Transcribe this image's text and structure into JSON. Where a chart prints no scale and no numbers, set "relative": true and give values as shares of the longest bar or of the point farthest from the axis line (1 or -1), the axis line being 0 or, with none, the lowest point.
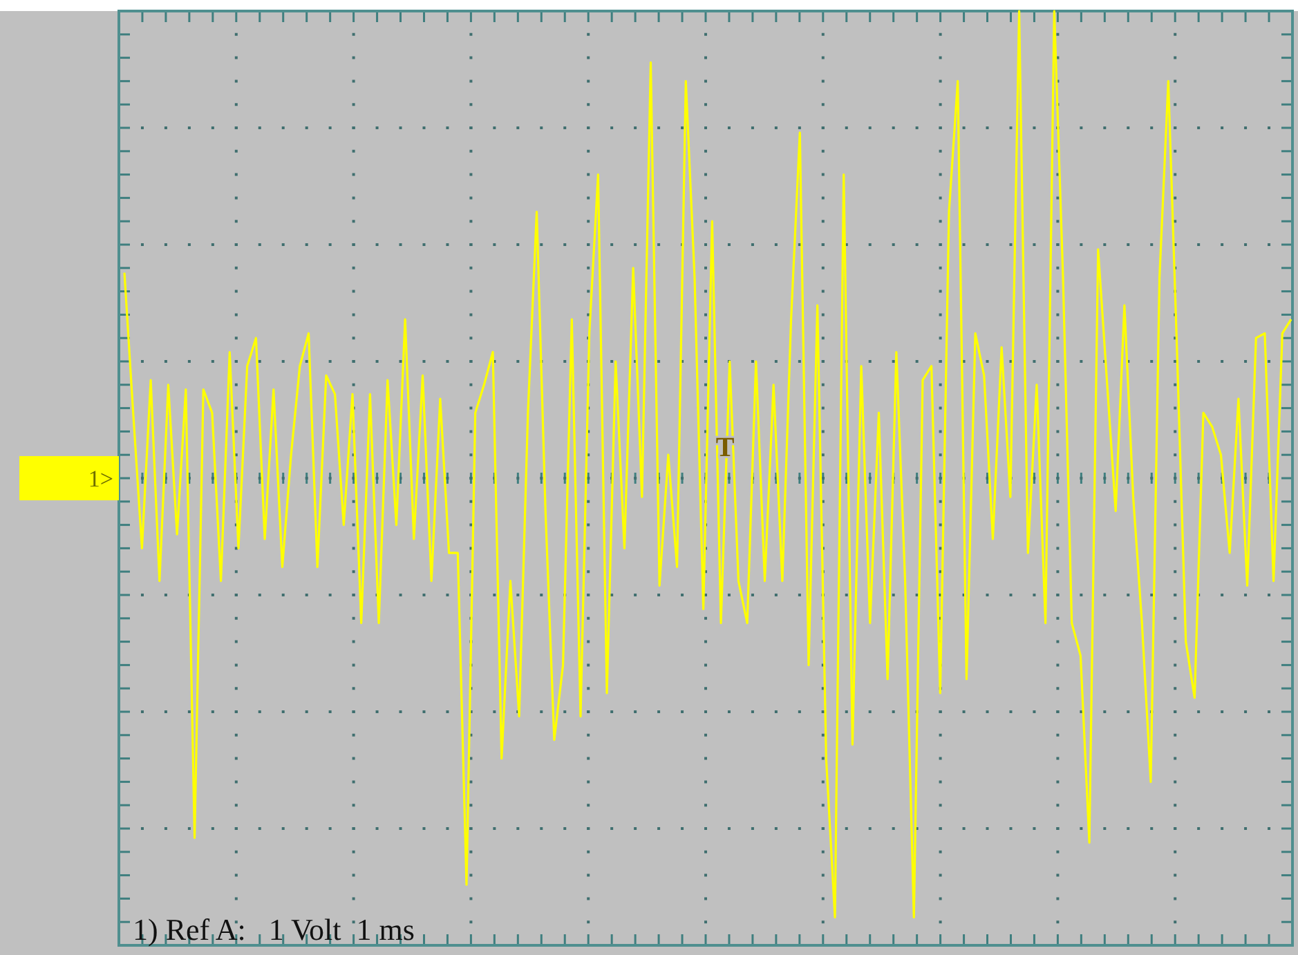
{
  "chart_data": {
    "type": "line",
    "relative": true,
    "grid": true,
    "annotations": [
      "1) Ref A:   1 Volt  1 ms",
      "1>",
      "T"
    ],
    "categories": [
      null,
      null,
      null,
      null,
      null,
      null,
      null,
      null,
      null,
      null,
      null,
      null,
      null,
      null,
      null,
      null,
      null,
      null,
      null,
      null,
      null,
      null,
      null,
      null,
      null,
      null,
      null,
      null,
      null,
      null,
      null,
      null,
      null,
      null,
      null,
      null,
      null,
      null,
      null,
      null,
      null,
      null,
      null,
      null,
      null,
      null,
      null,
      null,
      null,
      null,
      null,
      null,
      null,
      null,
      null,
      null,
      null,
      null,
      null,
      null,
      null,
      null,
      null,
      null,
      null,
      null,
      null,
      null,
      null,
      null,
      null,
      null,
      null,
      null,
      null,
      null,
      null,
      null,
      null,
      null,
      null,
      null,
      null,
      null,
      null,
      null,
      null,
      null,
      null,
      null,
      null,
      null,
      null,
      null,
      null,
      null,
      null,
      null,
      null,
      null,
      null,
      null,
      null,
      null,
      null,
      null,
      null,
      null,
      null,
      null,
      null,
      null,
      null,
      null,
      null,
      null,
      null,
      null,
      null,
      null,
      null,
      null,
      null,
      null,
      null,
      null,
      null,
      null,
      null,
      null,
      null,
      null,
      null,
      null
    ],
    "series": [
      {
        "color": "#ffff00",
        "values": [
          0.44,
          0.14,
          -0.15,
          0.21,
          -0.22,
          0.2,
          -0.12,
          0.19,
          -0.77,
          0.19,
          0.14,
          -0.22,
          0.27,
          -0.15,
          0.24,
          0.3,
          -0.13,
          0.19,
          -0.19,
          0.05,
          0.24,
          0.31,
          -0.19,
          0.22,
          0.18,
          -0.1,
          0.18,
          -0.31,
          0.18,
          -0.31,
          0.21,
          -0.1,
          0.34,
          -0.13,
          0.22,
          -0.22,
          0.17,
          -0.16,
          -0.16,
          -0.87,
          0.14,
          0.2,
          0.27,
          -0.6,
          -0.22,
          -0.51,
          0.14,
          0.57,
          -0.07,
          -0.56,
          -0.4,
          0.34,
          -0.51,
          0.31,
          0.65,
          -0.46,
          0.25,
          -0.15,
          0.45,
          -0.04,
          0.89,
          -0.23,
          0.05,
          -0.19,
          0.85,
          0.43,
          -0.28,
          0.55,
          -0.31,
          0.25,
          -0.22,
          -0.31,
          0.25,
          -0.22,
          0.2,
          -0.22,
          0.34,
          0.74,
          -0.4,
          0.37,
          -0.6,
          -0.94,
          0.65,
          -0.57,
          0.24,
          -0.31,
          0.14,
          -0.43,
          0.27,
          -0.22,
          -0.94,
          0.21,
          0.24,
          -0.46,
          0.57,
          0.85,
          -0.43,
          0.31,
          0.22,
          -0.13,
          0.28,
          -0.04,
          1,
          -0.16,
          0.2,
          -0.31,
          1,
          0.43,
          -0.31,
          -0.38,
          -0.78,
          0.49,
          0.21,
          -0.07,
          0.37,
          -0.04,
          -0.31,
          -0.65,
          0.43,
          0.85,
          0.27,
          -0.35,
          -0.47,
          0.14,
          0.11,
          0.05,
          -0.16,
          0.17,
          -0.23,
          0.3,
          0.31,
          -0.22,
          0.31,
          0.34
        ]
      }
    ]
  }
}
